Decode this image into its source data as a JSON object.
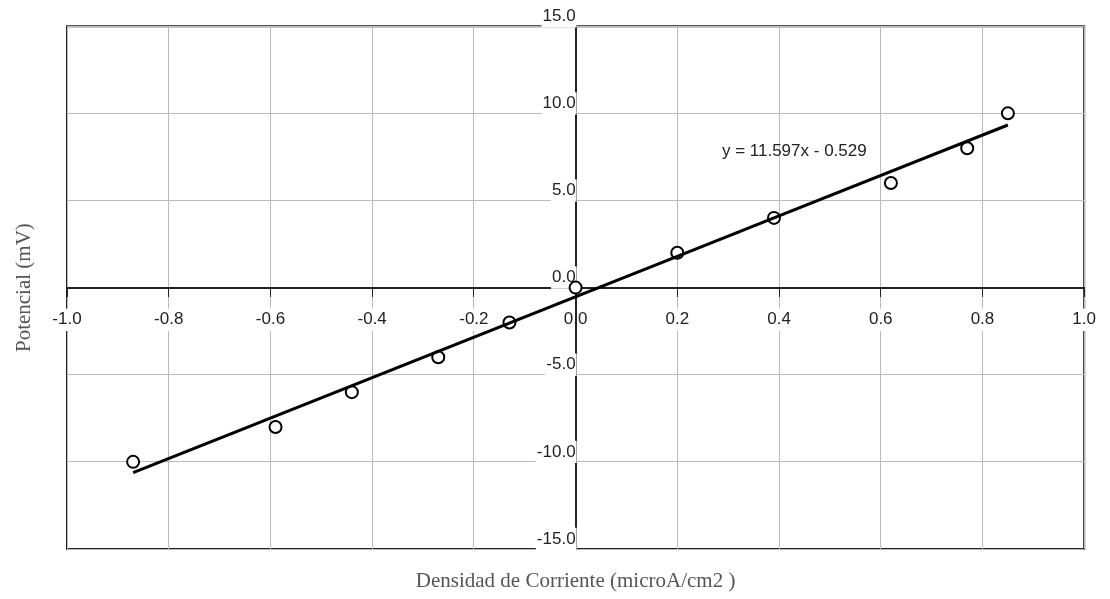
{
  "chart_data": {
    "type": "scatter",
    "xlabel": "Densidad de Corriente (microA/cm2 )",
    "ylabel": "Potencial (mV)",
    "xlim": [
      -1.0,
      1.0
    ],
    "ylim": [
      -15,
      15
    ],
    "xticks": [
      {
        "value": -1.0,
        "label": "-1.0"
      },
      {
        "value": -0.8,
        "label": "-0.8"
      },
      {
        "value": -0.6,
        "label": "-0.6"
      },
      {
        "value": -0.4,
        "label": "-0.4"
      },
      {
        "value": -0.2,
        "label": "-0.2"
      },
      {
        "value": 0,
        "label": "0.0"
      },
      {
        "value": 0.2,
        "label": "0.2"
      },
      {
        "value": 0.4,
        "label": "0.4"
      },
      {
        "value": 0.6,
        "label": "0.6"
      },
      {
        "value": 0.8,
        "label": "0.8"
      },
      {
        "value": 1.0,
        "label": "1.0"
      }
    ],
    "yticks": [
      {
        "value": -15,
        "label": "-15.0"
      },
      {
        "value": -10,
        "label": "-10.0"
      },
      {
        "value": -5,
        "label": "-5.0"
      },
      {
        "value": 0,
        "label": "0.0"
      },
      {
        "value": 5,
        "label": "5.0"
      },
      {
        "value": 10,
        "label": "10.0"
      },
      {
        "value": 15,
        "label": "15.0"
      }
    ],
    "grid": true,
    "series": [
      {
        "color": "#000000",
        "marker": "circle",
        "x": [
          -0.87,
          -0.59,
          -0.44,
          -0.27,
          -0.13,
          0,
          0.2,
          0.39,
          0.62,
          0.77,
          0.85
        ],
        "values": [
          -10,
          -8,
          -6,
          -4,
          -2,
          0,
          2,
          4,
          6,
          8,
          10
        ]
      },
      {
        "type": "line",
        "color": "#000000",
        "line_style": "solid",
        "x": [
          -0.87,
          0.85
        ],
        "values": [
          -10.62,
          9.33
        ]
      }
    ],
    "annotations": [
      "y = 11.597x - 0.529"
    ]
  }
}
